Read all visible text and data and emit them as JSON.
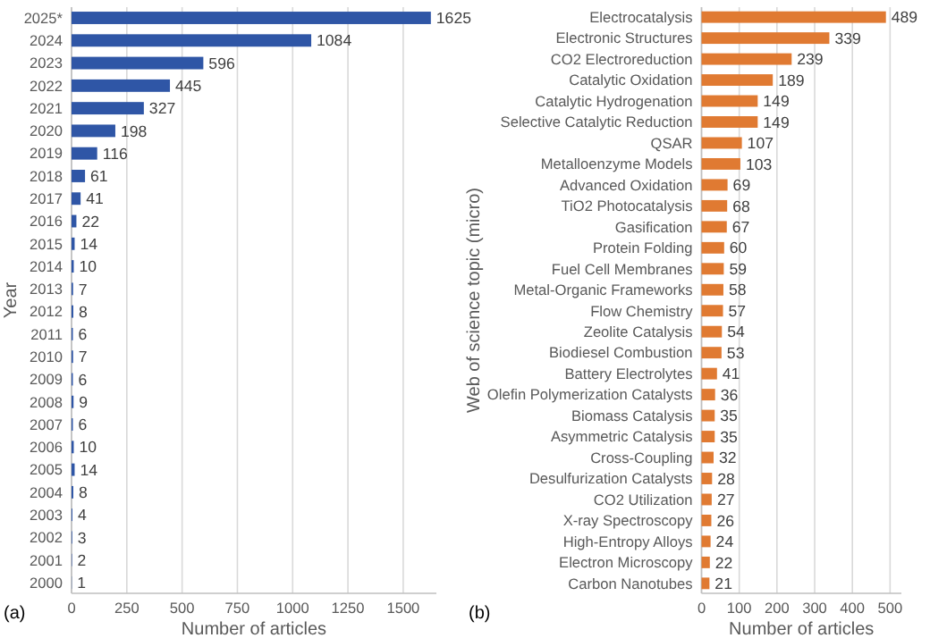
{
  "chart_data": [
    {
      "type": "bar",
      "orientation": "horizontal",
      "ylabel": "Year",
      "xlabel": "Number of articles",
      "annotations": [
        "(a)"
      ],
      "categories": [
        "2025*",
        "2024",
        "2023",
        "2022",
        "2021",
        "2020",
        "2019",
        "2018",
        "2017",
        "2016",
        "2015",
        "2014",
        "2013",
        "2012",
        "2011",
        "2010",
        "2009",
        "2008",
        "2007",
        "2006",
        "2005",
        "2004",
        "2003",
        "2002",
        "2001",
        "2000"
      ],
      "values": [
        1625,
        1084,
        596,
        445,
        327,
        198,
        116,
        61,
        41,
        22,
        14,
        10,
        7,
        8,
        6,
        7,
        6,
        9,
        6,
        10,
        14,
        8,
        4,
        3,
        2,
        1
      ],
      "color": "#2f56a6",
      "xlim": [
        0,
        1650
      ],
      "xticks": [
        0,
        250,
        500,
        750,
        1000,
        1250,
        1500
      ],
      "grid": "x",
      "data_labels": true
    },
    {
      "type": "bar",
      "orientation": "horizontal",
      "ylabel": "Web of science topic (micro)",
      "xlabel": "Number of articles",
      "annotations": [
        "(b)"
      ],
      "categories": [
        "Electrocatalysis",
        "Electronic Structures",
        "CO2 Electroreduction",
        "Catalytic Oxidation",
        "Catalytic Hydrogenation",
        "Selective Catalytic Reduction",
        "QSAR",
        "Metalloenzyme Models",
        "Advanced Oxidation",
        "TiO2 Photocatalysis",
        "Gasification",
        "Protein Folding",
        "Fuel Cell Membranes",
        "Metal-Organic Frameworks",
        "Flow Chemistry",
        "Zeolite Catalysis",
        "Biodiesel Combustion",
        "Battery Electrolytes",
        "Olefin Polymerization Catalysts",
        "Biomass Catalysis",
        "Asymmetric Catalysis",
        "Cross-Coupling",
        "Desulfurization Catalysts",
        "CO2 Utilization",
        "X-ray Spectroscopy",
        "High-Entropy Alloys",
        "Electron Microscopy",
        "Carbon Nanotubes"
      ],
      "values": [
        489,
        339,
        239,
        189,
        149,
        149,
        107,
        103,
        69,
        68,
        67,
        60,
        59,
        58,
        57,
        54,
        53,
        41,
        36,
        35,
        35,
        32,
        28,
        27,
        26,
        24,
        22,
        21
      ],
      "color": "#e07a32",
      "xlim": [
        0,
        530
      ],
      "xticks": [
        0,
        100,
        200,
        300,
        400,
        500
      ],
      "grid": "x",
      "data_labels": true
    }
  ]
}
